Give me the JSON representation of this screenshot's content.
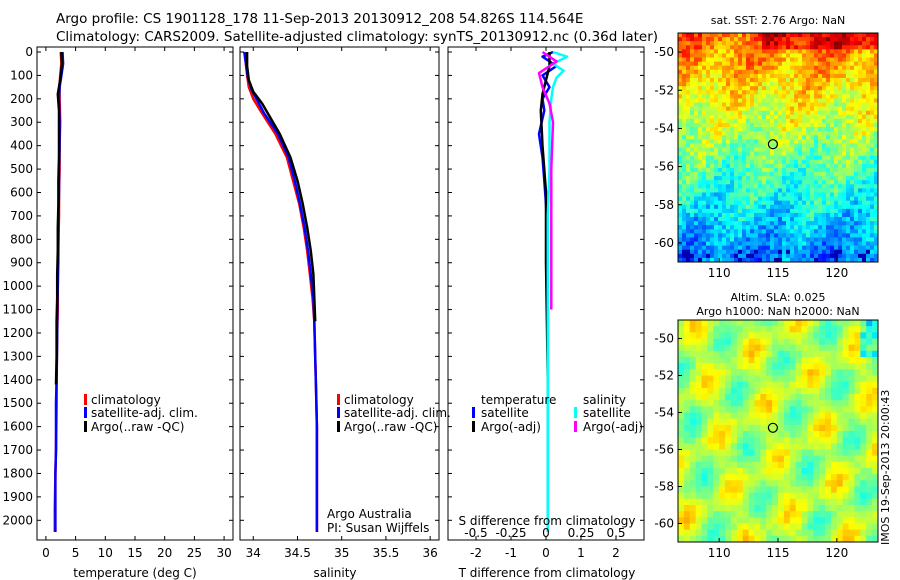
{
  "header": {
    "title_line1": "Argo profile: CS 1901128_178 11-Sep-2013 20130912_208 54.826S 114.564E",
    "title_line2": "Climatology: CARS2009. Satellite-adjusted climatology: synTS_20130912.nc (0.36d later)"
  },
  "colors": {
    "climatology": "#ff0000",
    "satellite_adj": "#0000ff",
    "argo": "#000000",
    "s_satellite": "#00ffff",
    "s_argo": "#ff00ff"
  },
  "chart_data": [
    {
      "type": "line",
      "id": "temperature",
      "xlabel": "temperature (deg C)",
      "ylabel": "",
      "xlim": [
        -1.5,
        31.5
      ],
      "ylim": [
        2070,
        0
      ],
      "xticks": [
        0,
        5,
        10,
        15,
        20,
        25,
        30
      ],
      "yticks": [
        0,
        100,
        200,
        300,
        400,
        500,
        600,
        700,
        800,
        900,
        1000,
        1100,
        1200,
        1300,
        1400,
        1500,
        1600,
        1700,
        1800,
        1900,
        2000
      ],
      "legend": [
        "climatology",
        "satellite-adj. clim.",
        "Argo(..raw -QC)"
      ],
      "series": [
        {
          "name": "climatology",
          "color": "#ff0000",
          "x": [
            2.5,
            2.6,
            2.4,
            2.3,
            2.3,
            2.4,
            2.3,
            2.3,
            2.2,
            2.2,
            2.1,
            2.1,
            2.0,
            2.0,
            1.9,
            1.8,
            1.8,
            1.7,
            1.6,
            1.5,
            1.5
          ],
          "y": [
            0,
            50,
            100,
            150,
            200,
            300,
            400,
            500,
            600,
            700,
            800,
            900,
            1000,
            1100,
            1200,
            1400,
            1500,
            1700,
            1800,
            1950,
            2050
          ]
        },
        {
          "name": "satellite-adj. clim.",
          "color": "#0000ff",
          "x": [
            2.8,
            2.9,
            2.6,
            2.3,
            2.2,
            2.3,
            2.3,
            2.2,
            2.2,
            2.1,
            2.1,
            2.0,
            2.0,
            1.9,
            1.9,
            1.8,
            1.7,
            1.7,
            1.6,
            1.6,
            1.6
          ],
          "y": [
            0,
            50,
            100,
            150,
            200,
            300,
            400,
            500,
            600,
            700,
            800,
            900,
            1000,
            1100,
            1200,
            1400,
            1500,
            1700,
            1800,
            1950,
            2050
          ]
        },
        {
          "name": "Argo(..raw -QC)",
          "color": "#000000",
          "x": [
            2.6,
            2.7,
            2.5,
            2.2,
            2.0,
            2.2,
            2.2,
            2.2,
            2.1,
            2.1,
            2.0,
            2.0,
            1.9,
            1.9,
            1.8,
            1.8,
            1.7
          ],
          "y": [
            0,
            50,
            100,
            150,
            180,
            250,
            350,
            450,
            550,
            650,
            750,
            850,
            950,
            1050,
            1150,
            1300,
            1420
          ]
        }
      ]
    },
    {
      "type": "line",
      "id": "salinity",
      "xlabel": "salinity",
      "ylabel": "",
      "xlim": [
        33.85,
        36.1
      ],
      "ylim": [
        2070,
        0
      ],
      "xticks": [
        34,
        34.5,
        35,
        35.5,
        36
      ],
      "xticklabels": [
        "34",
        "34.5",
        "35",
        "35.5",
        "36"
      ],
      "legend": [
        "climatology",
        "satellite-adj. clim.",
        "Argo(..raw -QC)"
      ],
      "annotation": [
        "Argo Australia",
        "PI: Susan Wijffels"
      ],
      "series": [
        {
          "name": "climatology",
          "color": "#ff0000",
          "x": [
            33.9,
            33.92,
            33.93,
            33.95,
            34.0,
            34.08,
            34.25,
            34.38,
            34.45,
            34.52,
            34.57,
            34.61,
            34.64,
            34.67,
            34.69,
            34.7,
            34.71,
            34.72,
            34.72,
            34.72
          ],
          "y": [
            0,
            60,
            100,
            150,
            200,
            250,
            350,
            450,
            550,
            650,
            750,
            850,
            950,
            1050,
            1150,
            1300,
            1450,
            1600,
            1800,
            2050
          ]
        },
        {
          "name": "satellite-adj. clim.",
          "color": "#0000ff",
          "x": [
            33.9,
            33.92,
            33.94,
            33.98,
            34.05,
            34.12,
            34.28,
            34.4,
            34.47,
            34.53,
            34.58,
            34.62,
            34.65,
            34.68,
            34.69,
            34.7,
            34.71,
            34.72,
            34.72,
            34.72
          ],
          "y": [
            0,
            60,
            110,
            160,
            210,
            260,
            350,
            450,
            550,
            650,
            750,
            850,
            950,
            1050,
            1150,
            1300,
            1450,
            1600,
            1800,
            2050
          ]
        },
        {
          "name": "Argo(..raw -QC)",
          "color": "#000000",
          "x": [
            33.93,
            33.93,
            33.95,
            34.0,
            34.1,
            34.3,
            34.42,
            34.5,
            34.56,
            34.61,
            34.65,
            34.68,
            34.69,
            34.7
          ],
          "y": [
            0,
            60,
            120,
            170,
            220,
            350,
            450,
            550,
            650,
            750,
            850,
            950,
            1050,
            1150
          ]
        }
      ]
    },
    {
      "type": "line",
      "id": "difference",
      "xlabel": "T difference from climatology",
      "xlabel_top": "S difference from climatology",
      "xlim": [
        -2.8,
        2.8
      ],
      "ylim": [
        2070,
        0
      ],
      "xticks": [
        -2,
        -1,
        0,
        1,
        2
      ],
      "xticklabels": [
        "-2",
        "-1",
        "0",
        "1",
        "2"
      ],
      "xticks_top_labels": [
        "-0.5",
        "-0.25",
        "0",
        "0.25",
        "0.5"
      ],
      "legend_groups": [
        {
          "title": "temperature",
          "items": [
            "satellite",
            "Argo(-adj)"
          ]
        },
        {
          "title": "salinity",
          "items": [
            "satellite",
            "Argo(-adj)"
          ]
        }
      ],
      "series": [
        {
          "name": "temperature satellite",
          "color": "#0000ff",
          "x": [
            0.2,
            -0.1,
            0.3,
            -0.1,
            0.1,
            -0.1,
            -0.05,
            -0.2,
            -0.1,
            -0.05,
            0.0,
            0.05,
            0.05,
            0.05,
            0.05,
            0.05,
            0.05
          ],
          "y": [
            0,
            20,
            60,
            100,
            150,
            200,
            250,
            350,
            450,
            550,
            650,
            800,
            1000,
            1200,
            1500,
            1800,
            2050
          ]
        },
        {
          "name": "temperature Argo(-adj)",
          "color": "#000000",
          "x": [
            0.1,
            0.1,
            0.0,
            -0.1,
            -0.15,
            -0.1,
            0.0,
            0.0,
            0.05
          ],
          "y": [
            0,
            60,
            120,
            180,
            250,
            400,
            600,
            900,
            1400
          ]
        },
        {
          "name": "salinity satellite",
          "color": "#00ffff",
          "x": [
            0.2,
            0.6,
            0.2,
            0.5,
            0.3,
            0.2,
            0.15,
            0.1,
            0.1,
            0.05,
            0.05,
            0.05,
            0.05,
            0.05
          ],
          "y": [
            0,
            20,
            50,
            80,
            110,
            150,
            200,
            300,
            500,
            700,
            1000,
            1300,
            1700,
            2050
          ]
        },
        {
          "name": "salinity Argo(-adj)",
          "color": "#ff00ff",
          "x": [
            -0.1,
            0.3,
            -0.2,
            -0.1,
            0.1,
            0.2,
            0.15,
            0.15,
            0.15,
            0.15,
            0.15
          ],
          "y": [
            0,
            40,
            90,
            150,
            220,
            300,
            500,
            700,
            900,
            1000,
            1100
          ]
        }
      ]
    }
  ],
  "maps": [
    {
      "id": "sst",
      "title": "sat. SST: 2.76 Argo: NaN",
      "xlim": [
        106.5,
        123.5
      ],
      "ylim": [
        -61,
        -49
      ],
      "xticks": [
        110,
        115,
        120
      ],
      "yticks": [
        -50,
        -52,
        -54,
        -56,
        -58,
        -60
      ],
      "marker": {
        "lon": 114.564,
        "lat": -54.826
      }
    },
    {
      "id": "sla",
      "title_line1": "Altim. SLA: 0.025",
      "title_line2": "Argo h1000: NaN h2000: NaN",
      "xlim": [
        106.5,
        123.5
      ],
      "ylim": [
        -61,
        -49
      ],
      "xticks": [
        110,
        115,
        120
      ],
      "yticks": [
        -50,
        -52,
        -54,
        -56,
        -58,
        -60
      ],
      "marker": {
        "lon": 114.564,
        "lat": -54.826
      }
    }
  ],
  "side_label": "IMOS 19-Sep-2013 20:00:43"
}
